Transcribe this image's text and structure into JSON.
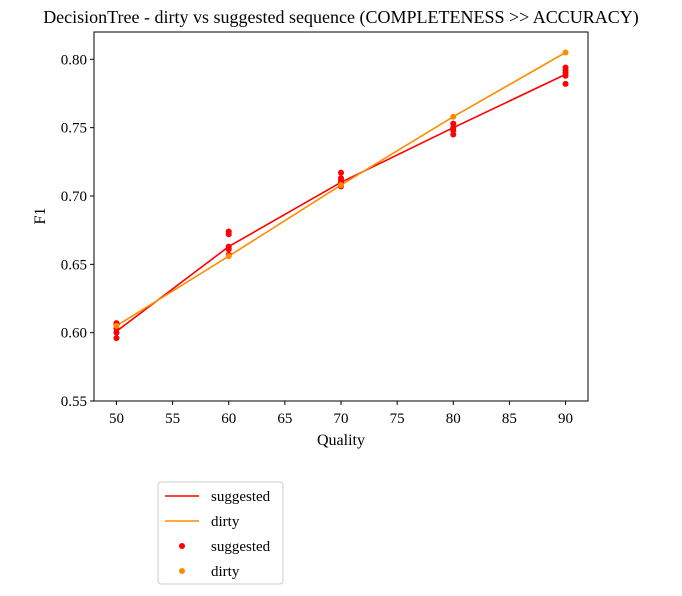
{
  "chart_data": {
    "type": "scatter",
    "title": "DecisionTree - dirty vs suggested sequence (COMPLETENESS >> ACCURACY)",
    "xlabel": "Quality",
    "ylabel": "F1",
    "xlim": [
      48,
      92
    ],
    "ylim": [
      0.55,
      0.82
    ],
    "xticks": [
      50,
      55,
      60,
      65,
      70,
      75,
      80,
      85,
      90
    ],
    "yticks": [
      0.55,
      0.6,
      0.65,
      0.7,
      0.75,
      0.8
    ],
    "grid": false,
    "legend_position": "below-left",
    "legend": [
      {
        "label": "suggested",
        "kind": "line",
        "color": "#ff0000"
      },
      {
        "label": "dirty",
        "kind": "line",
        "color": "#ff8c00"
      },
      {
        "label": "suggested",
        "kind": "points",
        "color": "#ff0000"
      },
      {
        "label": "dirty",
        "kind": "points",
        "color": "#ff8c00"
      }
    ],
    "series": [
      {
        "name": "suggested",
        "color": "#ff0000",
        "line": {
          "x": [
            50,
            60,
            70,
            80,
            90
          ],
          "y": [
            0.601,
            0.663,
            0.71,
            0.75,
            0.789
          ]
        },
        "points": {
          "x": [
            50,
            50,
            50,
            50,
            50,
            60,
            60,
            60,
            60,
            60,
            70,
            70,
            70,
            70,
            70,
            80,
            80,
            80,
            80,
            90,
            90,
            90,
            90,
            90
          ],
          "y": [
            0.596,
            0.6,
            0.603,
            0.606,
            0.607,
            0.657,
            0.661,
            0.663,
            0.672,
            0.674,
            0.707,
            0.71,
            0.712,
            0.713,
            0.717,
            0.745,
            0.748,
            0.75,
            0.753,
            0.782,
            0.788,
            0.79,
            0.792,
            0.794
          ]
        }
      },
      {
        "name": "dirty",
        "color": "#ff8c00",
        "line": {
          "x": [
            50,
            60,
            70,
            80,
            90
          ],
          "y": [
            0.605,
            0.656,
            0.708,
            0.758,
            0.805
          ]
        },
        "points": {
          "x": [
            50,
            60,
            70,
            80,
            90
          ],
          "y": [
            0.605,
            0.656,
            0.708,
            0.758,
            0.805
          ]
        }
      }
    ]
  }
}
